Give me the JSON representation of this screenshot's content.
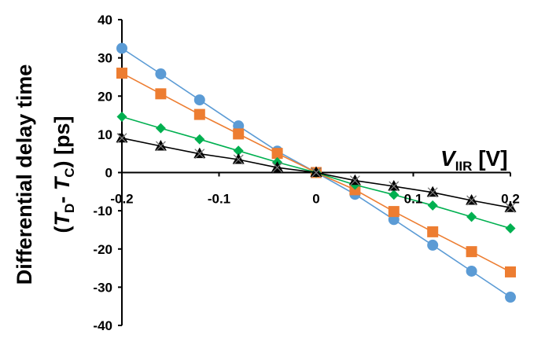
{
  "chart_data": {
    "type": "line",
    "xlim": [
      -0.2,
      0.2
    ],
    "ylim": [
      -40,
      40
    ],
    "x_ticks": [
      "-0.2",
      "-0.1",
      "0",
      "0.1",
      "0.2"
    ],
    "y_ticks": [
      "40",
      "30",
      "20",
      "10",
      "0",
      "-10",
      "-20",
      "-30",
      "-40"
    ],
    "x_tick_values": [
      -0.2,
      -0.1,
      0,
      0.1,
      0.2
    ],
    "y_tick_values": [
      40,
      30,
      20,
      10,
      0,
      -10,
      -20,
      -30,
      -40
    ],
    "ylabel_line1": "Differential delay time",
    "ylabel_line2": {
      "open": "(",
      "T1": "T",
      "sub1": "D",
      "dash": "- ",
      "T2": "T",
      "sub2": "C",
      "close": ")  [ps]"
    },
    "xlabel": {
      "V": "V",
      "sub": "IIR",
      "unit": " [V]"
    },
    "grid": false,
    "legend": "none",
    "x": [
      -0.2,
      -0.16,
      -0.12,
      -0.08,
      -0.04,
      0,
      0.04,
      0.08,
      0.12,
      0.16,
      0.2
    ],
    "series": [
      {
        "color": "#5B9BD5",
        "marker": "circle",
        "values": [
          32.5,
          25.8,
          19.0,
          12.2,
          5.6,
          0,
          -5.7,
          -12.3,
          -19.0,
          -25.8,
          -32.6
        ]
      },
      {
        "color": "#ED7D31",
        "marker": "square",
        "values": [
          26.0,
          20.6,
          15.2,
          10.1,
          5.0,
          0,
          -4.5,
          -10.2,
          -15.5,
          -20.7,
          -26.0
        ]
      },
      {
        "color": "#00B050",
        "marker": "diamond",
        "values": [
          14.6,
          11.6,
          8.7,
          5.7,
          2.7,
          0,
          -3.2,
          -5.8,
          -8.6,
          -11.6,
          -14.6
        ]
      },
      {
        "color": "#000000",
        "marker": "triangle",
        "values": [
          9.0,
          6.9,
          4.9,
          3.4,
          1.3,
          0,
          -2.1,
          -3.6,
          -5.2,
          -7.3,
          -9.2
        ]
      }
    ]
  }
}
